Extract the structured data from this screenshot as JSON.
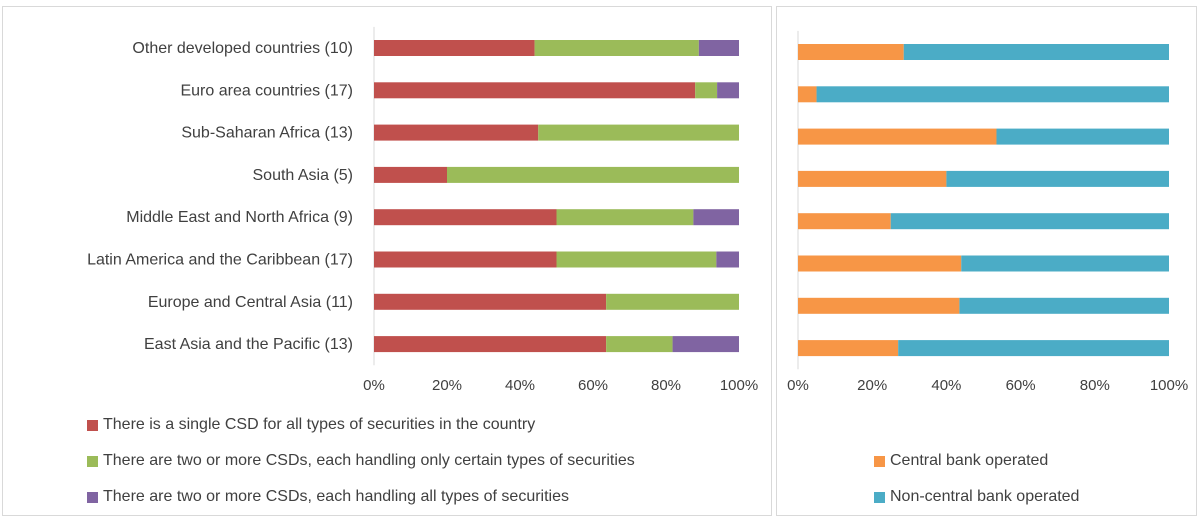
{
  "colors": {
    "single_csd": "#c0504d",
    "two_plus_certain": "#9bbb59",
    "two_plus_all": "#8064a2",
    "central_bank": "#f79646",
    "non_central_bank": "#4bacc6",
    "axis_line": "#d9d9d9",
    "text": "#404040"
  },
  "chart_data": [
    {
      "type": "bar",
      "orientation": "horizontal",
      "stacked": "percent",
      "categories": [
        "Other developed countries (10)",
        "Euro area countries (17)",
        "Sub-Saharan Africa (13)",
        "South Asia (5)",
        "Middle East and North Africa (9)",
        "Latin America and the Caribbean (17)",
        "Europe and Central Asia (11)",
        "East Asia and the Pacific (13)"
      ],
      "series": [
        {
          "name": "There is a single CSD for all types of securities in the country",
          "color_key": "single_csd",
          "values": [
            44,
            88,
            45,
            20,
            50,
            50,
            63.6,
            63.6
          ]
        },
        {
          "name": "There are two or more CSDs, each handling only certain types of securities",
          "color_key": "two_plus_certain",
          "values": [
            45,
            6,
            55,
            80,
            37.5,
            43.8,
            36.4,
            18.2
          ]
        },
        {
          "name": "There are two or more CSDs, each handling all types of securities",
          "color_key": "two_plus_all",
          "values": [
            11,
            6,
            0,
            0,
            12.5,
            6.2,
            0,
            18.2
          ]
        }
      ],
      "xlim": [
        0,
        100
      ],
      "x_ticks": [
        "0%",
        "20%",
        "40%",
        "60%",
        "80%",
        "100%"
      ],
      "grid": false,
      "legend_position": "bottom"
    },
    {
      "type": "bar",
      "orientation": "horizontal",
      "stacked": "percent",
      "categories": [
        "Other developed countries (10)",
        "Euro area countries (17)",
        "Sub-Saharan Africa (13)",
        "South Asia (5)",
        "Middle East and North Africa (9)",
        "Latin America and the Caribbean (17)",
        "Europe and Central Asia (11)",
        "East Asia and the Pacific (13)"
      ],
      "series": [
        {
          "name": "Central bank operated",
          "color_key": "central_bank",
          "values": [
            28.5,
            5,
            53.5,
            40,
            25,
            44,
            43.5,
            27
          ]
        },
        {
          "name": "Non-central bank operated",
          "color_key": "non_central_bank",
          "values": [
            71.5,
            95,
            46.5,
            60,
            75,
            56,
            56.5,
            73
          ]
        }
      ],
      "xlim": [
        0,
        100
      ],
      "x_ticks": [
        "0%",
        "20%",
        "40%",
        "60%",
        "80%",
        "100%"
      ],
      "grid": false,
      "legend_position": "bottom"
    }
  ]
}
